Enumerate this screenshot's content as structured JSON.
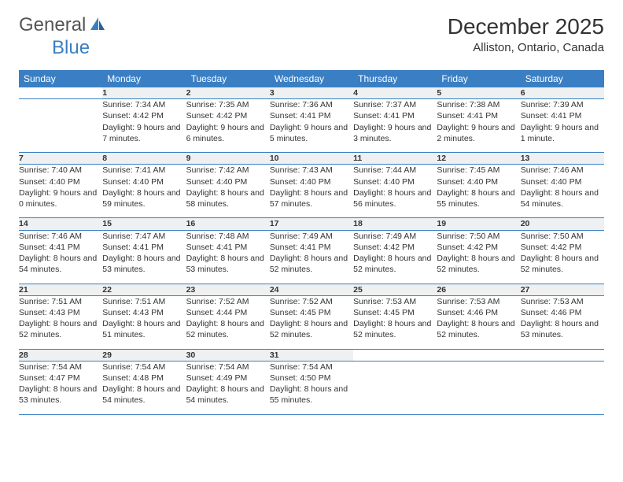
{
  "brand": {
    "name1": "General",
    "name2": "Blue",
    "logo_color": "#3a7fc4"
  },
  "header": {
    "title": "December 2025",
    "location": "Alliston, Ontario, Canada"
  },
  "style": {
    "header_bg": "#3a7fc4",
    "header_fg": "#ffffff",
    "daynum_bg": "#eef0f1",
    "daynum_fg": "#676d71",
    "border_color": "#3a7fc4",
    "body_font_size": 10.5,
    "title_font_size": 28
  },
  "weekdays": [
    "Sunday",
    "Monday",
    "Tuesday",
    "Wednesday",
    "Thursday",
    "Friday",
    "Saturday"
  ],
  "weeks": [
    {
      "nums": [
        "",
        "1",
        "2",
        "3",
        "4",
        "5",
        "6"
      ],
      "cells": [
        "",
        "Sunrise: 7:34 AM\nSunset: 4:42 PM\nDaylight: 9 hours and 7 minutes.",
        "Sunrise: 7:35 AM\nSunset: 4:42 PM\nDaylight: 9 hours and 6 minutes.",
        "Sunrise: 7:36 AM\nSunset: 4:41 PM\nDaylight: 9 hours and 5 minutes.",
        "Sunrise: 7:37 AM\nSunset: 4:41 PM\nDaylight: 9 hours and 3 minutes.",
        "Sunrise: 7:38 AM\nSunset: 4:41 PM\nDaylight: 9 hours and 2 minutes.",
        "Sunrise: 7:39 AM\nSunset: 4:41 PM\nDaylight: 9 hours and 1 minute."
      ]
    },
    {
      "nums": [
        "7",
        "8",
        "9",
        "10",
        "11",
        "12",
        "13"
      ],
      "cells": [
        "Sunrise: 7:40 AM\nSunset: 4:40 PM\nDaylight: 9 hours and 0 minutes.",
        "Sunrise: 7:41 AM\nSunset: 4:40 PM\nDaylight: 8 hours and 59 minutes.",
        "Sunrise: 7:42 AM\nSunset: 4:40 PM\nDaylight: 8 hours and 58 minutes.",
        "Sunrise: 7:43 AM\nSunset: 4:40 PM\nDaylight: 8 hours and 57 minutes.",
        "Sunrise: 7:44 AM\nSunset: 4:40 PM\nDaylight: 8 hours and 56 minutes.",
        "Sunrise: 7:45 AM\nSunset: 4:40 PM\nDaylight: 8 hours and 55 minutes.",
        "Sunrise: 7:46 AM\nSunset: 4:40 PM\nDaylight: 8 hours and 54 minutes."
      ]
    },
    {
      "nums": [
        "14",
        "15",
        "16",
        "17",
        "18",
        "19",
        "20"
      ],
      "cells": [
        "Sunrise: 7:46 AM\nSunset: 4:41 PM\nDaylight: 8 hours and 54 minutes.",
        "Sunrise: 7:47 AM\nSunset: 4:41 PM\nDaylight: 8 hours and 53 minutes.",
        "Sunrise: 7:48 AM\nSunset: 4:41 PM\nDaylight: 8 hours and 53 minutes.",
        "Sunrise: 7:49 AM\nSunset: 4:41 PM\nDaylight: 8 hours and 52 minutes.",
        "Sunrise: 7:49 AM\nSunset: 4:42 PM\nDaylight: 8 hours and 52 minutes.",
        "Sunrise: 7:50 AM\nSunset: 4:42 PM\nDaylight: 8 hours and 52 minutes.",
        "Sunrise: 7:50 AM\nSunset: 4:42 PM\nDaylight: 8 hours and 52 minutes."
      ]
    },
    {
      "nums": [
        "21",
        "22",
        "23",
        "24",
        "25",
        "26",
        "27"
      ],
      "cells": [
        "Sunrise: 7:51 AM\nSunset: 4:43 PM\nDaylight: 8 hours and 52 minutes.",
        "Sunrise: 7:51 AM\nSunset: 4:43 PM\nDaylight: 8 hours and 51 minutes.",
        "Sunrise: 7:52 AM\nSunset: 4:44 PM\nDaylight: 8 hours and 52 minutes.",
        "Sunrise: 7:52 AM\nSunset: 4:45 PM\nDaylight: 8 hours and 52 minutes.",
        "Sunrise: 7:53 AM\nSunset: 4:45 PM\nDaylight: 8 hours and 52 minutes.",
        "Sunrise: 7:53 AM\nSunset: 4:46 PM\nDaylight: 8 hours and 52 minutes.",
        "Sunrise: 7:53 AM\nSunset: 4:46 PM\nDaylight: 8 hours and 53 minutes."
      ]
    },
    {
      "nums": [
        "28",
        "29",
        "30",
        "31",
        "",
        "",
        ""
      ],
      "cells": [
        "Sunrise: 7:54 AM\nSunset: 4:47 PM\nDaylight: 8 hours and 53 minutes.",
        "Sunrise: 7:54 AM\nSunset: 4:48 PM\nDaylight: 8 hours and 54 minutes.",
        "Sunrise: 7:54 AM\nSunset: 4:49 PM\nDaylight: 8 hours and 54 minutes.",
        "Sunrise: 7:54 AM\nSunset: 4:50 PM\nDaylight: 8 hours and 55 minutes.",
        "",
        "",
        ""
      ]
    }
  ]
}
